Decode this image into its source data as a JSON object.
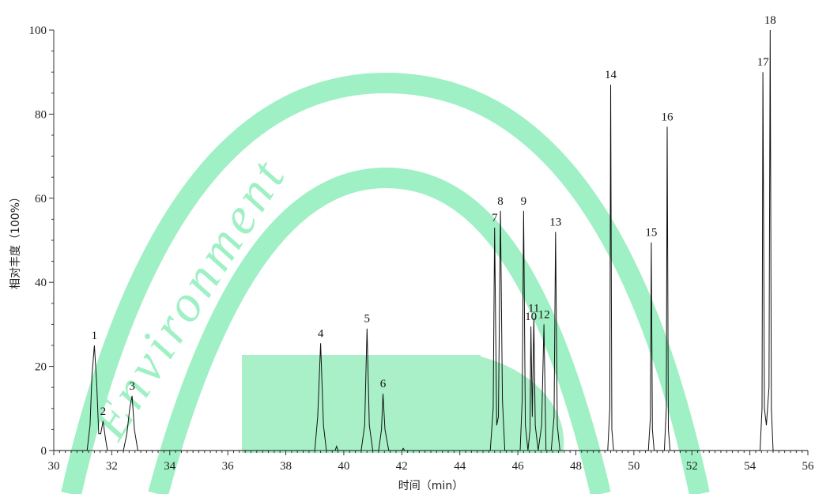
{
  "chart_data": {
    "type": "line",
    "title": "",
    "xlabel": "时间（min）",
    "ylabel": "相对丰度（100%）",
    "xlim": [
      30,
      56
    ],
    "ylim": [
      0,
      100
    ],
    "x_ticks": [
      30,
      32,
      34,
      36,
      38,
      40,
      42,
      44,
      46,
      48,
      50,
      52,
      54,
      56
    ],
    "y_ticks": [
      0,
      20,
      40,
      60,
      80,
      100
    ],
    "grid": false,
    "watermark": {
      "text": "Environment",
      "color": "#9ff0c4"
    },
    "peaks": [
      {
        "label": "1",
        "x": 31.4,
        "y": 25
      },
      {
        "label": "2",
        "x": 31.7,
        "y": 7
      },
      {
        "label": "3",
        "x": 32.7,
        "y": 13
      },
      {
        "label": "4",
        "x": 39.2,
        "y": 25.5
      },
      {
        "label": "5",
        "x": 40.8,
        "y": 29
      },
      {
        "label": "6",
        "x": 41.35,
        "y": 13.5
      },
      {
        "label": "7",
        "x": 45.2,
        "y": 53
      },
      {
        "label": "8",
        "x": 45.4,
        "y": 57
      },
      {
        "label": "9",
        "x": 46.2,
        "y": 57
      },
      {
        "label": "10",
        "x": 46.45,
        "y": 29.5
      },
      {
        "label": "11",
        "x": 46.55,
        "y": 31.5
      },
      {
        "label": "12",
        "x": 46.9,
        "y": 30
      },
      {
        "label": "13",
        "x": 47.3,
        "y": 52
      },
      {
        "label": "14",
        "x": 49.2,
        "y": 87
      },
      {
        "label": "15",
        "x": 50.6,
        "y": 49.5
      },
      {
        "label": "16",
        "x": 51.15,
        "y": 77
      },
      {
        "label": "17",
        "x": 54.45,
        "y": 90
      },
      {
        "label": "18",
        "x": 54.7,
        "y": 100
      }
    ],
    "series": [
      {
        "x": [
          30,
          31.15,
          31.25,
          31.32,
          31.4,
          31.48,
          31.55,
          31.62,
          31.7,
          31.78,
          31.85,
          32.4,
          32.52,
          32.62,
          32.7,
          32.78,
          32.9,
          39.0,
          39.1,
          39.2,
          39.3,
          39.4,
          39.7,
          39.75,
          39.8,
          40.6,
          40.72,
          40.8,
          40.88,
          41.0,
          41.2,
          41.3,
          41.35,
          41.42,
          41.55,
          42.0,
          42.05,
          42.1,
          45.05,
          45.15,
          45.2,
          45.27,
          45.33,
          45.4,
          45.47,
          45.55,
          46.08,
          46.15,
          46.2,
          46.26,
          46.35,
          46.42,
          46.45,
          46.5,
          46.55,
          46.6,
          46.7,
          46.82,
          46.9,
          46.97,
          47.15,
          47.25,
          47.3,
          47.36,
          47.45,
          49.1,
          49.17,
          49.2,
          49.24,
          49.3,
          50.5,
          50.57,
          50.6,
          50.64,
          50.7,
          51.05,
          51.12,
          51.15,
          51.19,
          51.25,
          54.35,
          54.42,
          54.45,
          54.5,
          54.57,
          54.66,
          54.7,
          54.74,
          54.8,
          56
        ],
        "y": [
          0,
          0,
          6,
          18,
          25,
          16,
          4,
          4,
          7,
          3,
          0,
          0,
          4,
          10,
          13,
          5,
          0,
          0,
          8,
          25.5,
          6,
          0,
          0,
          1,
          0,
          0,
          6,
          29,
          6,
          0,
          0,
          5,
          13.5,
          5,
          0,
          0,
          0.5,
          0,
          0,
          10,
          53,
          6,
          8,
          57,
          12,
          0,
          0,
          12,
          57,
          6,
          0,
          5,
          29.5,
          8,
          31.5,
          6,
          0,
          6,
          30,
          0,
          0,
          8,
          52,
          6,
          0,
          0,
          10,
          87,
          5,
          0,
          0,
          8,
          49.5,
          5,
          0,
          0,
          10,
          77,
          5,
          0,
          0,
          10,
          90,
          10,
          6,
          15,
          100,
          10,
          0,
          0
        ]
      }
    ]
  }
}
